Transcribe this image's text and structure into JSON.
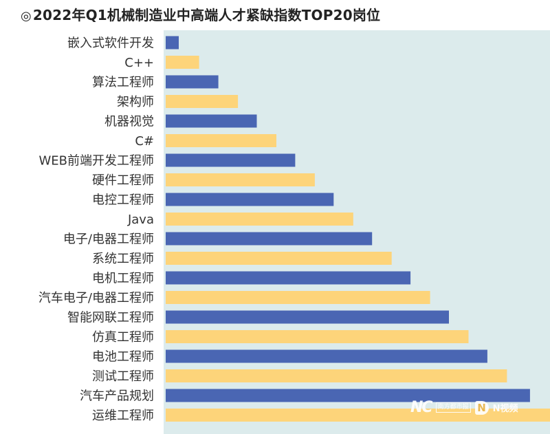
{
  "title": {
    "symbol": "◎",
    "text": "2022年Q1机械制造业中高端人才紧缺指数TOP20岗位"
  },
  "colors": {
    "background_panel": "#dcebec",
    "bar_blue": "#4a66b3",
    "bar_yellow": "#fdd47a",
    "label_text": "#333333"
  },
  "chart_data": {
    "type": "bar",
    "orientation": "horizontal",
    "title": "2022年Q1机械制造业中高端人才紧缺指数TOP20岗位",
    "xlabel": "",
    "ylabel": "",
    "grid": false,
    "axis_values_shown": false,
    "value_unit": "relative index (no axis shown, 0–1 of longest bar)",
    "xlim": [
      0,
      1
    ],
    "categories": [
      "嵌入式软件开发",
      "C++",
      "算法工程师",
      "架构师",
      "机器视觉",
      "C#",
      "WEB前端开发工程师",
      "硬件工程师",
      "电控工程师",
      "Java",
      "电子/电器工程师",
      "系统工程师",
      "电机工程师",
      "汽车电子/电器工程师",
      "智能网联工程师",
      "仿真工程师",
      "电池工程师",
      "测试工程师",
      "汽车产品规划",
      "运维工程师"
    ],
    "values": [
      0.034,
      0.087,
      0.137,
      0.188,
      0.237,
      0.288,
      0.337,
      0.388,
      0.437,
      0.488,
      0.537,
      0.588,
      0.637,
      0.688,
      0.737,
      0.788,
      0.837,
      0.888,
      0.948,
      1.0
    ],
    "bar_color_pattern": [
      "blue",
      "yellow"
    ]
  },
  "watermark": {
    "brand": "NC",
    "box_text": "南方都市报",
    "video_label": "N视频"
  }
}
